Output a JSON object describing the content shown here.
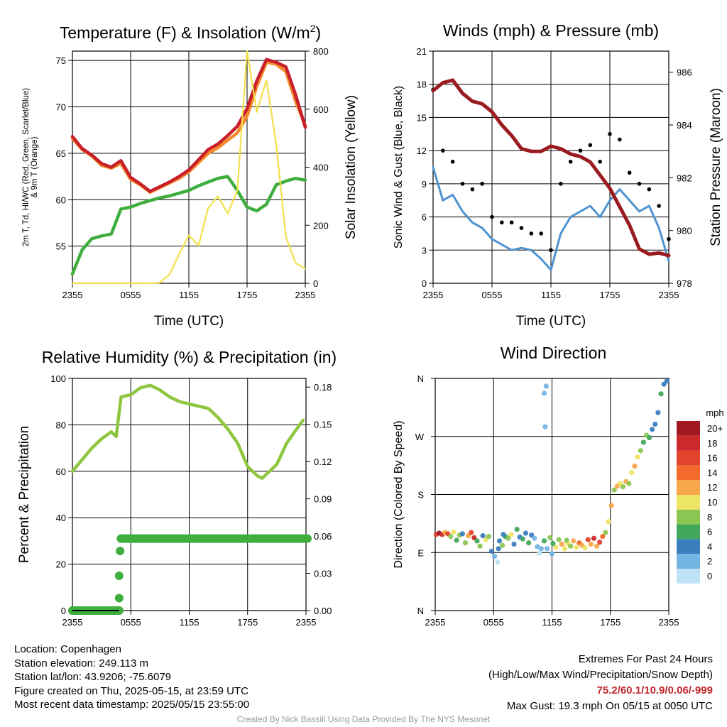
{
  "chart_data": [
    {
      "type": "line",
      "title": "Temperature (F) & Insolation (W/m²)",
      "xlabel": "Time (UTC)",
      "ylabel": "2m T, Td, HI/WC (Red, Green, Scarlet/Blue) & 9m T (Orange)",
      "ylabel_right": "Solar Insolation (Yellow)",
      "x_ticks": [
        "2355",
        "0555",
        "1155",
        "1755",
        "2355"
      ],
      "ylim": [
        51,
        76
      ],
      "y_ticks": [
        55,
        60,
        65,
        70,
        75
      ],
      "ylim_right": [
        0,
        800
      ],
      "y_ticks_right": [
        0,
        200,
        400,
        600,
        800
      ],
      "x_hours": [
        0,
        1,
        2,
        3,
        4,
        5,
        6,
        7,
        8,
        9,
        10,
        11,
        12,
        13,
        14,
        15,
        16,
        17,
        18,
        19,
        20,
        21,
        22,
        23,
        24
      ],
      "series": [
        {
          "color": "#f58a2c",
          "axis": "left",
          "values": [
            66.6,
            65.4,
            64.7,
            63.7,
            63.4,
            63.9,
            62.2,
            61.6,
            60.8,
            61.3,
            61.8,
            62.3,
            63.0,
            64.0,
            65.0,
            65.6,
            66.4,
            67.2,
            69.0,
            72.2,
            74.8,
            74.6,
            73.8,
            70.6,
            68.0
          ]
        },
        {
          "color": "#c8202a",
          "axis": "left",
          "values": [
            66.8,
            65.5,
            64.8,
            63.9,
            63.5,
            64.2,
            62.4,
            61.7,
            60.9,
            61.4,
            61.9,
            62.5,
            63.2,
            64.3,
            65.4,
            66.0,
            66.9,
            67.9,
            69.8,
            72.8,
            75.1,
            74.8,
            74.3,
            71.3,
            67.8
          ]
        },
        {
          "color": "#3fae3f",
          "axis": "left",
          "values": [
            52.0,
            54.6,
            55.8,
            56.1,
            56.3,
            59.0,
            59.2,
            59.6,
            59.9,
            60.2,
            60.4,
            60.7,
            61.0,
            61.5,
            61.9,
            62.3,
            62.5,
            61.0,
            59.2,
            58.8,
            59.5,
            61.6,
            62.0,
            62.3,
            62.1
          ]
        },
        {
          "color": "#f2e04c",
          "axis": "right",
          "values": [
            0,
            0,
            0,
            0,
            0,
            0,
            0,
            0,
            0,
            2,
            30,
            100,
            165,
            130,
            260,
            300,
            240,
            320,
            800,
            590,
            700,
            480,
            160,
            70,
            50
          ]
        }
      ]
    },
    {
      "type": "line",
      "title": "Winds (mph) & Pressure (mb)",
      "xlabel": "Time (UTC)",
      "ylabel": "Sonic Wind & Gust (Blue, Black)",
      "ylabel_right": "Station Pressure (Maroon)",
      "x_ticks": [
        "2355",
        "0555",
        "1155",
        "1755",
        "2355"
      ],
      "ylim": [
        0,
        21
      ],
      "y_ticks": [
        0,
        3,
        6,
        9,
        12,
        15,
        18,
        21
      ],
      "ylim_right": [
        978,
        986.8
      ],
      "y_ticks_right": [
        978,
        980,
        982,
        984,
        986
      ],
      "x_hours": [
        0,
        1,
        2,
        3,
        4,
        5,
        6,
        7,
        8,
        9,
        10,
        11,
        12,
        13,
        14,
        15,
        16,
        17,
        18,
        19,
        20,
        21,
        22,
        23,
        24
      ],
      "series": [
        {
          "name": "wind",
          "color": "#4f93d0",
          "axis": "left",
          "values": [
            10.5,
            7.5,
            8.0,
            6.5,
            5.5,
            5.0,
            4.0,
            3.5,
            3.0,
            3.2,
            3.0,
            2.2,
            1.2,
            4.5,
            6.0,
            6.5,
            7.0,
            6.0,
            7.5,
            8.5,
            7.5,
            6.5,
            7.0,
            5.0,
            2.0
          ]
        },
        {
          "name": "gust",
          "color": "#000000",
          "axis": "left",
          "values": [
            17.5,
            12.0,
            11.0,
            9.0,
            8.5,
            9.0,
            6.0,
            5.5,
            5.5,
            5.0,
            4.5,
            4.5,
            3.0,
            9.0,
            11.0,
            12.0,
            12.5,
            11.0,
            13.5,
            13.0,
            10.0,
            9.0,
            8.5,
            7.0,
            4.0
          ]
        },
        {
          "name": "pressure",
          "color": "#9b1c20",
          "axis": "right",
          "values": [
            985.3,
            985.6,
            985.7,
            985.2,
            984.9,
            984.8,
            984.5,
            984.0,
            983.6,
            983.1,
            983.0,
            983.0,
            983.2,
            983.1,
            982.9,
            982.8,
            982.6,
            982.1,
            981.6,
            980.9,
            980.2,
            979.3,
            979.1,
            979.15,
            979.05
          ]
        }
      ]
    },
    {
      "type": "line",
      "title": "Relative Humidity (%) & Precipitation (in)",
      "ylabel": "Percent & Precipitation",
      "x_ticks": [
        "2355",
        "0555",
        "1155",
        "1755",
        "2355"
      ],
      "ylim": [
        0,
        100
      ],
      "y_ticks": [
        0,
        20,
        40,
        60,
        80,
        100
      ],
      "ylim_right": [
        0,
        0.187
      ],
      "y_ticks_right": [
        "0.00",
        "0.03",
        "0.06",
        "0.09",
        "0.12",
        "0.15",
        "0.18"
      ],
      "x_hours": [
        0,
        1,
        2,
        3,
        4,
        4.5,
        5,
        6,
        7,
        8,
        9,
        10,
        11,
        12,
        13,
        14,
        15,
        16,
        17,
        18,
        19,
        19.5,
        20,
        21,
        22,
        23,
        23.7
      ],
      "series": [
        {
          "name": "rh",
          "color": "#8ec63f",
          "axis": "left",
          "values": [
            60,
            65,
            70,
            74,
            77,
            75,
            92,
            93,
            96,
            97,
            95,
            92,
            90,
            89,
            88,
            87,
            83,
            78,
            72,
            62,
            58,
            57,
            59,
            63,
            72,
            78,
            82
          ]
        }
      ],
      "precip": {
        "color": "#3fae3f",
        "points": [
          [
            0,
            0
          ],
          [
            1,
            0
          ],
          [
            2,
            0
          ],
          [
            3,
            0
          ],
          [
            4,
            0
          ],
          [
            4.8,
            0
          ],
          [
            4.8,
            0.01
          ],
          [
            4.8,
            0.028
          ],
          [
            4.9,
            0.048
          ],
          [
            5.0,
            0.058
          ],
          [
            6,
            0.058
          ],
          [
            9,
            0.058
          ],
          [
            12,
            0.058
          ],
          [
            15,
            0.058
          ],
          [
            18,
            0.058
          ],
          [
            21,
            0.058
          ],
          [
            24,
            0.058
          ]
        ]
      }
    },
    {
      "type": "scatter",
      "title": "Wind Direction",
      "ylabel": "Direction (Colored By Speed)",
      "x_ticks": [
        "2355",
        "0555",
        "1155",
        "1755",
        "2355"
      ],
      "y_ticks": [
        "N",
        "E",
        "S",
        "W",
        "N"
      ],
      "ylim": [
        0,
        360
      ],
      "legend": {
        "title": "mph",
        "labels": [
          "20+",
          "18",
          "16",
          "14",
          "12",
          "10",
          "8",
          "6",
          "4",
          "2",
          "0"
        ],
        "colors": [
          "#a01920",
          "#cc2a2a",
          "#e2432d",
          "#f26a2c",
          "#f8a74a",
          "#ede564",
          "#8cc653",
          "#43a85c",
          "#3b7fbf",
          "#74b4e2",
          "#bfe3f6"
        ]
      },
      "points": [
        [
          0.1,
          118,
          8
        ],
        [
          0.4,
          120,
          10
        ],
        [
          0.7,
          118,
          9
        ],
        [
          1.0,
          121,
          6
        ],
        [
          1.3,
          119,
          8
        ],
        [
          1.6,
          115,
          4
        ],
        [
          1.9,
          122,
          5
        ],
        [
          2.2,
          109,
          3
        ],
        [
          2.5,
          117,
          4
        ],
        [
          2.8,
          119,
          2
        ],
        [
          3.1,
          105,
          4
        ],
        [
          3.4,
          116,
          6
        ],
        [
          3.7,
          121,
          8
        ],
        [
          4.0,
          113,
          9
        ],
        [
          4.3,
          108,
          3
        ],
        [
          4.6,
          100,
          4
        ],
        [
          4.9,
          116,
          2
        ],
        [
          5.2,
          110,
          5
        ],
        [
          5.5,
          115,
          4
        ],
        [
          5.8,
          92,
          2
        ],
        [
          6.1,
          84,
          1
        ],
        [
          6.4,
          75,
          0
        ],
        [
          6.6,
          108,
          2
        ],
        [
          6.9,
          101,
          4
        ],
        [
          7.2,
          115,
          3
        ],
        [
          7.5,
          112,
          4
        ],
        [
          7.8,
          118,
          5
        ],
        [
          8.1,
          103,
          2
        ],
        [
          8.4,
          126,
          3
        ],
        [
          8.7,
          114,
          2
        ],
        [
          9.0,
          111,
          3
        ],
        [
          9.3,
          120,
          2
        ],
        [
          9.6,
          105,
          3
        ],
        [
          9.9,
          117,
          2
        ],
        [
          10.2,
          112,
          1
        ],
        [
          10.5,
          99,
          1
        ],
        [
          10.7,
          89,
          0
        ],
        [
          10.9,
          96,
          1
        ],
        [
          11.2,
          108,
          3
        ],
        [
          11.5,
          96,
          1
        ],
        [
          11.8,
          113,
          4
        ],
        [
          12.1,
          104,
          3
        ],
        [
          12.4,
          98,
          5
        ],
        [
          12.7,
          110,
          4
        ],
        [
          13.0,
          103,
          6
        ],
        [
          13.3,
          96,
          5
        ],
        [
          13.6,
          104,
          5
        ],
        [
          13.9,
          100,
          4
        ],
        [
          14.2,
          108,
          6
        ],
        [
          14.5,
          98,
          5
        ],
        [
          14.8,
          105,
          7
        ],
        [
          15.1,
          101,
          6
        ],
        [
          15.4,
          97,
          5
        ],
        [
          15.7,
          110,
          8
        ],
        [
          16.0,
          103,
          6
        ],
        [
          16.3,
          112,
          9
        ],
        [
          16.6,
          100,
          6
        ],
        [
          16.9,
          106,
          8
        ],
        [
          17.2,
          115,
          7
        ],
        [
          17.5,
          121,
          4
        ],
        [
          17.8,
          138,
          5
        ],
        [
          18.1,
          163,
          6
        ],
        [
          18.4,
          187,
          4
        ],
        [
          18.7,
          193,
          6
        ],
        [
          19.0,
          197,
          5
        ],
        [
          19.3,
          192,
          4
        ],
        [
          19.6,
          200,
          6
        ],
        [
          19.9,
          197,
          4
        ],
        [
          20.2,
          214,
          5
        ],
        [
          20.5,
          224,
          6
        ],
        [
          20.8,
          238,
          5
        ],
        [
          21.1,
          248,
          4
        ],
        [
          21.4,
          261,
          3
        ],
        [
          21.7,
          272,
          4
        ],
        [
          22.0,
          268,
          3
        ],
        [
          22.3,
          281,
          2
        ],
        [
          22.6,
          289,
          2
        ],
        [
          22.9,
          307,
          2
        ],
        [
          23.2,
          336,
          3
        ],
        [
          23.5,
          351,
          2
        ],
        [
          23.8,
          356,
          2
        ],
        [
          11.4,
          348,
          1
        ],
        [
          11.2,
          337,
          1
        ],
        [
          11.3,
          285,
          1
        ],
        [
          6.5,
          96,
          2
        ],
        [
          12.0,
          88,
          1
        ],
        [
          7.0,
          118,
          2
        ],
        [
          13.5,
          109,
          4
        ]
      ]
    }
  ],
  "info": {
    "location": "Location: Copenhagen",
    "elevation": "Station elevation: 249.113 m",
    "latlon": "Station lat/lon: 43.9206; -75.6079",
    "created": "Figure created on Thu, 2025-05-15, at 23:59 UTC",
    "recent": "Most recent data timestamp: 2025/05/15 23:55:00"
  },
  "extremes": {
    "title": "Extremes For Past 24 Hours",
    "subtitle": "(High/Low/Max Wind/Precipitation/Snow Depth)",
    "values": "75.2/60.1/10.9/0.06/-999",
    "gust": "Max Gust: 19.3 mph On 05/15 at 0050 UTC"
  },
  "credit": "Created By Nick Bassill Using Data Provided By The NYS Mesonet"
}
